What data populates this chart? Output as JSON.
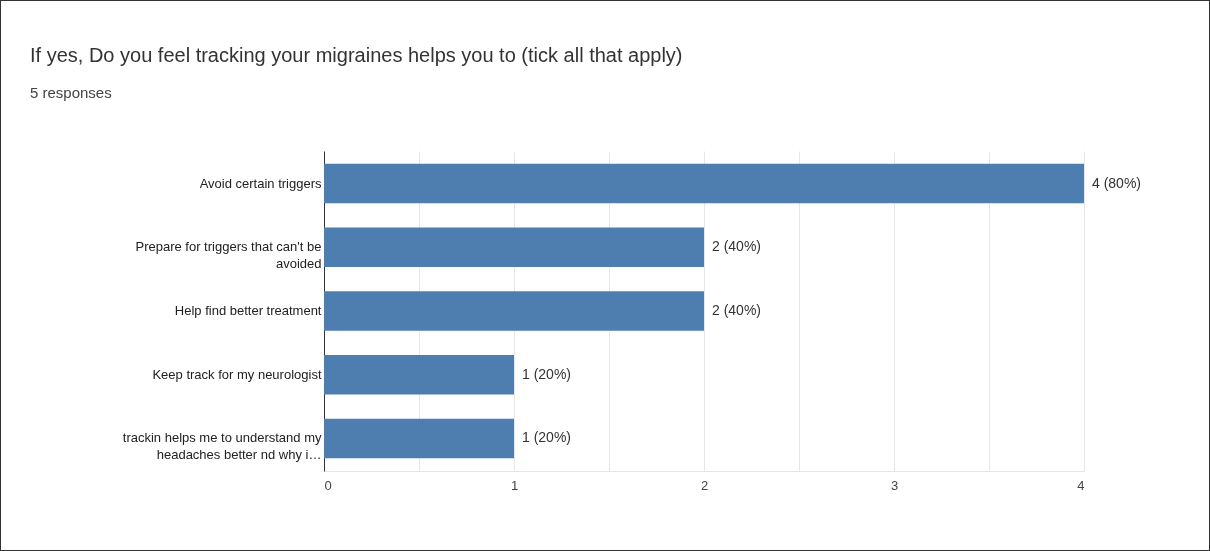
{
  "chart_data": {
    "type": "bar",
    "orientation": "horizontal",
    "title": "If yes, Do you feel tracking your migraines helps you to (tick all that apply)",
    "subtitle": "5 responses",
    "categories": [
      "Avoid certain triggers",
      "Prepare for triggers that can't be avoided",
      "Help find better treatment",
      "Keep track for my neurologist",
      "trackin helps me to understand my headaches better nd why i…"
    ],
    "values": [
      4,
      2,
      2,
      1,
      1
    ],
    "value_labels": [
      "4 (80%)",
      "2 (40%)",
      "2 (40%)",
      "1 (20%)",
      "1 (20%)"
    ],
    "color": "#4e7eb0",
    "xlim": [
      0,
      4
    ],
    "xticks": [
      0,
      {
        "value": 0.5,
        "label": null
      },
      1,
      {
        "value": 1.5,
        "label": null
      },
      2,
      {
        "value": 2.5,
        "label": null
      },
      3,
      {
        "value": 3.5,
        "label": null
      },
      4
    ],
    "grid": "x"
  }
}
